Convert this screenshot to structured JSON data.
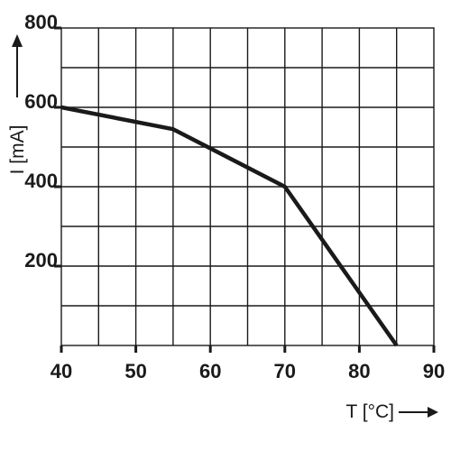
{
  "chart_data": {
    "type": "line",
    "title": "",
    "xlabel": "T [°C]",
    "ylabel": "I [mA]",
    "xlim": [
      40,
      90
    ],
    "ylim": [
      0,
      800
    ],
    "x_ticks": [
      40,
      50,
      60,
      70,
      80,
      90
    ],
    "y_ticks": [
      200,
      400,
      600,
      800
    ],
    "x_tick_labels": [
      "40",
      "50",
      "60",
      "70",
      "80",
      "90"
    ],
    "y_tick_labels": [
      "200",
      "400",
      "600",
      "800"
    ],
    "grid": true,
    "x_grid_step": 5,
    "y_grid_step": 100,
    "series": [
      {
        "x": [
          40,
          55,
          70,
          85
        ],
        "y": [
          600,
          545,
          400,
          0
        ]
      }
    ]
  }
}
